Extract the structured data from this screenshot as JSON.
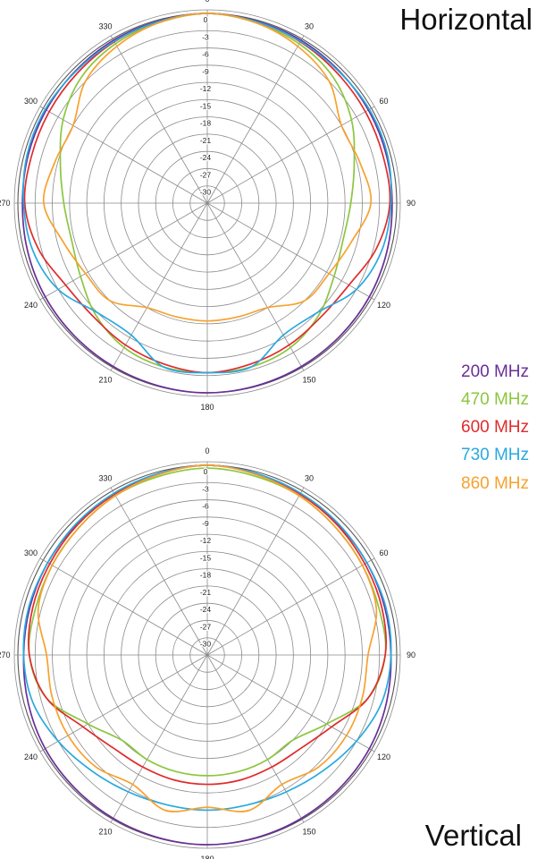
{
  "legend": [
    {
      "label": "200 MHz",
      "color": "#6a2f96"
    },
    {
      "label": "470 MHz",
      "color": "#8cc63f"
    },
    {
      "label": "600 MHz",
      "color": "#e02b2b"
    },
    {
      "label": "730 MHz",
      "color": "#29a9df"
    },
    {
      "label": "860 MHz",
      "color": "#f7a12e"
    }
  ],
  "chart_data": [
    {
      "type": "polar",
      "title": "Horizontal",
      "r_unit": "dB",
      "r_range": [
        -33,
        0
      ],
      "r_ticks": [
        0,
        -3,
        -6,
        -9,
        -12,
        -15,
        -18,
        -21,
        -24,
        -27,
        -30
      ],
      "theta_ticks": [
        0,
        30,
        60,
        90,
        120,
        150,
        180,
        210,
        240,
        270,
        300,
        330
      ],
      "theta_direction": "clockwise",
      "theta_zero": "top",
      "grid": true,
      "angles": [
        0,
        15,
        30,
        45,
        60,
        75,
        90,
        105,
        120,
        135,
        150,
        165,
        180,
        195,
        210,
        225,
        240,
        255,
        270,
        285,
        300,
        315,
        330,
        345
      ],
      "series": [
        {
          "name": "200 MHz",
          "color": "#6a2f96",
          "values": [
            0,
            -0.2,
            -0.3,
            -0.5,
            -0.6,
            -0.7,
            -0.8,
            -0.6,
            -0.4,
            -0.3,
            -0.2,
            -0.1,
            0,
            -0.1,
            -0.2,
            -0.3,
            -0.4,
            -0.6,
            -0.8,
            -0.7,
            -0.6,
            -0.5,
            -0.3,
            -0.2
          ]
        },
        {
          "name": "470 MHz",
          "color": "#8cc63f",
          "values": [
            0,
            -0.5,
            -1,
            -2,
            -4,
            -6.5,
            -8,
            -8.5,
            -7.5,
            -5.5,
            -4,
            -3.5,
            -3.5,
            -3.5,
            -4,
            -5.5,
            -7.5,
            -8.5,
            -8,
            -6.5,
            -4,
            -2,
            -1,
            -0.5
          ]
        },
        {
          "name": "600 MHz",
          "color": "#e02b2b",
          "values": [
            0,
            -0.3,
            -0.6,
            -1,
            -1.2,
            -1.3,
            -1.2,
            -2.5,
            -4.5,
            -5,
            -4.5,
            -4,
            -3.5,
            -4,
            -4.5,
            -5,
            -4.5,
            -2.5,
            -1.2,
            -1.3,
            -1.2,
            -1,
            -0.6,
            -0.3
          ]
        },
        {
          "name": "730 MHz",
          "color": "#29a9df",
          "values": [
            0,
            -0.3,
            -0.5,
            -0.6,
            -0.4,
            -0.5,
            -1,
            -1.5,
            -3,
            -6,
            -6.5,
            -3.5,
            -3.5,
            -3.5,
            -6.5,
            -6,
            -3,
            -1.5,
            -1,
            -0.5,
            -0.4,
            -0.6,
            -0.5,
            -0.3
          ]
        },
        {
          "name": "860 MHz",
          "color": "#f7a12e",
          "values": [
            0,
            -0.5,
            -1.5,
            -3,
            -6,
            -5.5,
            -4.5,
            -7,
            -8.5,
            -9,
            -12,
            -12.5,
            -12.5,
            -12.5,
            -12,
            -9,
            -8.5,
            -7,
            -4.5,
            -5.5,
            -6,
            -3,
            -1.5,
            -0.5
          ]
        }
      ]
    },
    {
      "type": "polar",
      "title": "Vertical",
      "r_unit": "dB",
      "r_range": [
        -33,
        0
      ],
      "r_ticks": [
        0,
        -3,
        -6,
        -9,
        -12,
        -15,
        -18,
        -21,
        -24,
        -27,
        -30
      ],
      "theta_ticks": [
        0,
        30,
        60,
        90,
        120,
        150,
        180,
        210,
        240,
        270,
        300,
        330
      ],
      "theta_direction": "clockwise",
      "theta_zero": "top",
      "grid": true,
      "angles": [
        0,
        15,
        30,
        45,
        60,
        75,
        90,
        105,
        120,
        135,
        150,
        165,
        180,
        195,
        210,
        225,
        240,
        255,
        270,
        285,
        300,
        315,
        330,
        345
      ],
      "series": [
        {
          "name": "200 MHz",
          "color": "#6a2f96",
          "values": [
            0,
            -0.3,
            -0.6,
            -0.8,
            -0.9,
            -1,
            -1,
            -0.7,
            -0.4,
            -0.3,
            -0.2,
            -0.1,
            0,
            -0.1,
            -0.2,
            -0.3,
            -0.4,
            -0.7,
            -1,
            -1,
            -0.9,
            -0.8,
            -0.6,
            -0.3
          ]
        },
        {
          "name": "470 MHz",
          "color": "#8cc63f",
          "values": [
            -0.5,
            -0.8,
            -1,
            -1.5,
            -1.8,
            -2,
            -2,
            -4,
            -9,
            -12,
            -12,
            -12,
            -12,
            -12,
            -12,
            -12,
            -9,
            -4,
            -2,
            -2,
            -1.8,
            -1.5,
            -1,
            -0.8
          ]
        },
        {
          "name": "600 MHz",
          "color": "#e02b2b",
          "values": [
            0,
            -0.3,
            -0.7,
            -1,
            -1.3,
            -1.5,
            -2,
            -4,
            -8,
            -10,
            -10.5,
            -10.5,
            -10.5,
            -10.5,
            -10.5,
            -10,
            -8,
            -4,
            -2,
            -1.5,
            -1.3,
            -1,
            -0.7,
            -0.3
          ]
        },
        {
          "name": "730 MHz",
          "color": "#29a9df",
          "values": [
            0,
            -0.3,
            -0.5,
            -0.7,
            -0.9,
            -0.8,
            -1,
            -1.5,
            -3,
            -4.5,
            -5.5,
            -6,
            -6,
            -6,
            -5.5,
            -4.5,
            -3,
            -1.5,
            -1,
            -0.8,
            -0.9,
            -0.7,
            -0.5,
            -0.3
          ]
        },
        {
          "name": "860 MHz",
          "color": "#f7a12e",
          "values": [
            0,
            -0.5,
            -1,
            -1.5,
            -1.8,
            -2.5,
            -5,
            -5,
            -5,
            -5.5,
            -7,
            -5,
            -6.5,
            -5,
            -7,
            -5.5,
            -5,
            -5,
            -5,
            -2.5,
            -1.8,
            -1.5,
            -1,
            -0.5
          ]
        }
      ]
    }
  ]
}
